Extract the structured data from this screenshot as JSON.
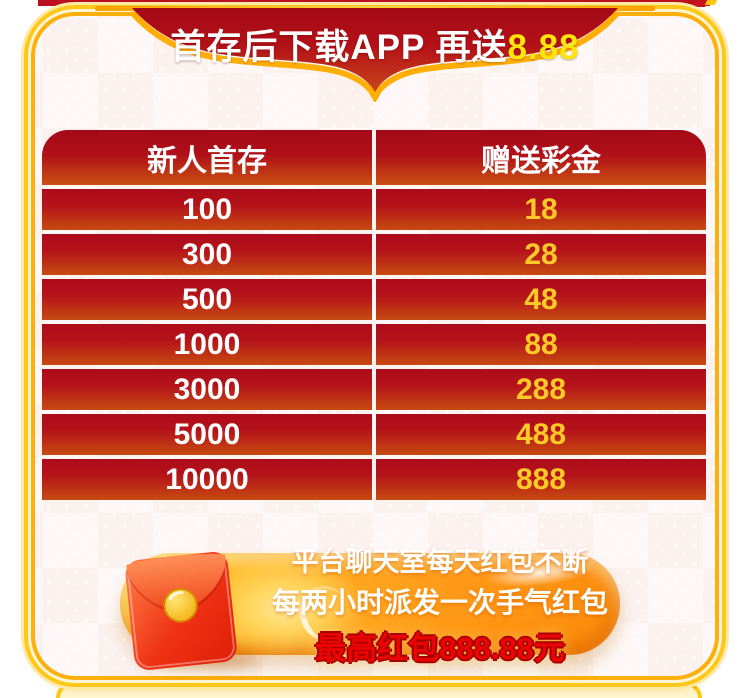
{
  "banner": {
    "title_text": "首存后下载APP 再送",
    "highlight_text": "8.88"
  },
  "table": {
    "headers": [
      "新人首存",
      "赠送彩金"
    ],
    "rows": [
      {
        "deposit": "100",
        "bonus": "18"
      },
      {
        "deposit": "300",
        "bonus": "28"
      },
      {
        "deposit": "500",
        "bonus": "48"
      },
      {
        "deposit": "1000",
        "bonus": "88"
      },
      {
        "deposit": "3000",
        "bonus": "288"
      },
      {
        "deposit": "5000",
        "bonus": "488"
      },
      {
        "deposit": "10000",
        "bonus": "888"
      }
    ]
  },
  "promo": {
    "line1": "平台聊天室每天红包不断",
    "line2": "每两小时派发一次手气红包",
    "highlight_line": "最高红包888.88元",
    "icon": "red-envelope-icon"
  },
  "colors": {
    "frame_gold": "#ffc71a",
    "card_background": "#fbf1ee",
    "row_red_top": "#ac0b1a",
    "row_red_bottom": "#c64b11",
    "bonus_yellow": "#ffc928",
    "banner_highlight_yellow": "#ffe60a",
    "pill_orange": "#ffa51f",
    "promo_red": "#ea0503"
  }
}
